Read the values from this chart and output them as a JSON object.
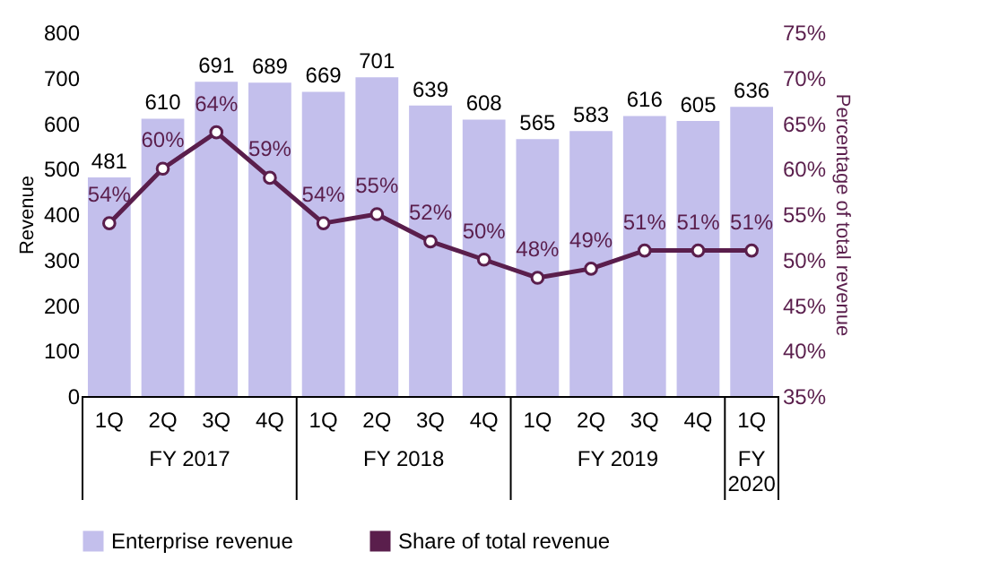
{
  "chart_data": {
    "type": "bar",
    "categories": [
      "1Q",
      "2Q",
      "3Q",
      "4Q",
      "1Q",
      "2Q",
      "3Q",
      "4Q",
      "1Q",
      "2Q",
      "3Q",
      "4Q",
      "1Q"
    ],
    "annotations": [
      "FY 2017",
      "FY 2018",
      "FY 2019",
      "FY 2020"
    ],
    "ylabel": "Revenue",
    "y2label": "Percentage of total revenue",
    "ylim": [
      0,
      800
    ],
    "yticks": [
      0,
      100,
      200,
      300,
      400,
      500,
      600,
      700,
      800
    ],
    "y2lim": [
      35,
      75
    ],
    "y2ticks": [
      {
        "value": 35,
        "label": "35%"
      },
      {
        "value": 40,
        "label": "40%"
      },
      {
        "value": 45,
        "label": "45%"
      },
      {
        "value": 50,
        "label": "50%"
      },
      {
        "value": 55,
        "label": "55%"
      },
      {
        "value": 60,
        "label": "60%"
      },
      {
        "value": 65,
        "label": "65%"
      },
      {
        "value": 70,
        "label": "70%"
      },
      {
        "value": 75,
        "label": "75%"
      }
    ],
    "series": [
      {
        "name": "Enterprise revenue",
        "color": "#c3bfec",
        "values": [
          481,
          610,
          691,
          689,
          669,
          701,
          639,
          608,
          565,
          583,
          616,
          605,
          636
        ]
      },
      {
        "name": "Share of total revenue",
        "type": "line",
        "axis": "y2",
        "color": "#5a1e4c",
        "marker": "circle",
        "values": [
          54,
          60,
          64,
          59,
          54,
          55,
          52,
          50,
          48,
          49,
          51,
          51,
          51
        ],
        "value_labels": [
          "54%",
          "60%",
          "64%",
          "59%",
          "54%",
          "55%",
          "52%",
          "50%",
          "48%",
          "49%",
          "51%",
          "51%",
          "51%"
        ]
      }
    ],
    "data_labels": true,
    "grid": false,
    "legend": "bottom"
  }
}
